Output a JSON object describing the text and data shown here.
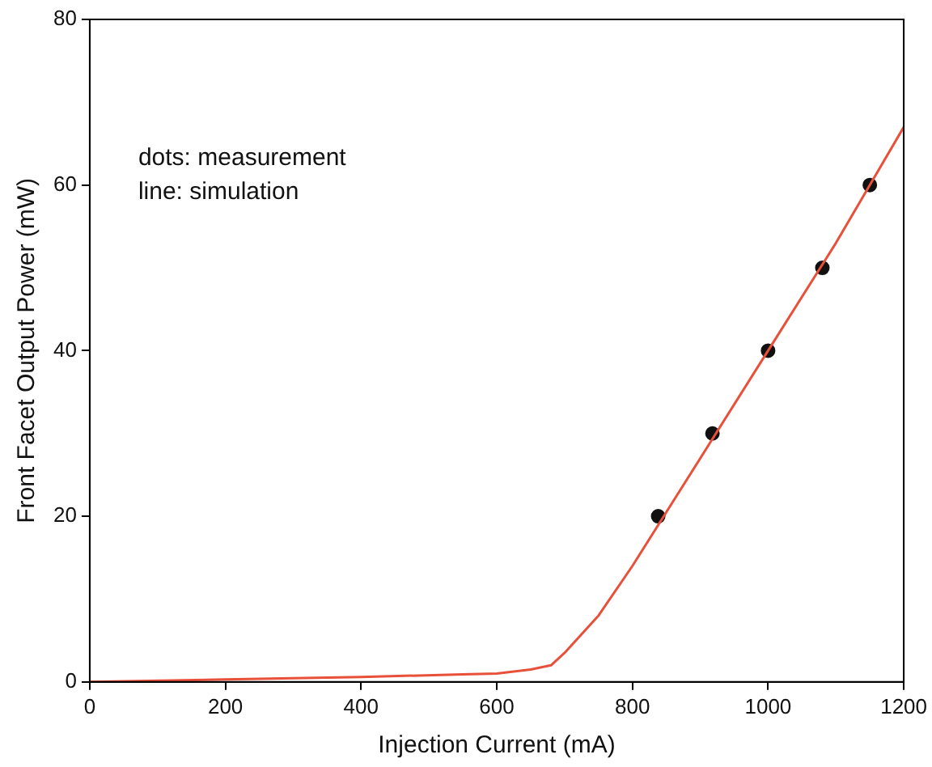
{
  "chart_data": {
    "type": "line",
    "xlabel": "Injection Current (mA)",
    "ylabel": "Front Facet Output Power (mW)",
    "xlim": [
      0,
      1200
    ],
    "xticks": [
      0,
      200,
      400,
      600,
      800,
      1000,
      1200
    ],
    "ylim": [
      0,
      80
    ],
    "yticks": [
      0,
      20,
      40,
      60,
      80
    ],
    "grid": false,
    "annotations": [
      "dots: measurement",
      "line: simulation"
    ],
    "series": [
      {
        "color": "#e8503a",
        "marker": "none",
        "x": [
          0,
          200,
          400,
          550,
          600,
          650,
          680,
          700,
          750,
          800,
          850,
          900,
          1000,
          1100,
          1200
        ],
        "values": [
          0,
          0.3,
          0.6,
          0.9,
          1.0,
          1.5,
          2,
          3.5,
          8,
          14,
          20.5,
          27,
          40,
          53,
          67
        ]
      },
      {
        "type": "scatter",
        "color": "#111111",
        "marker": "circle",
        "x": [
          838,
          918,
          1000,
          1080,
          1150
        ],
        "values": [
          20,
          30,
          40,
          50,
          60
        ]
      }
    ]
  }
}
